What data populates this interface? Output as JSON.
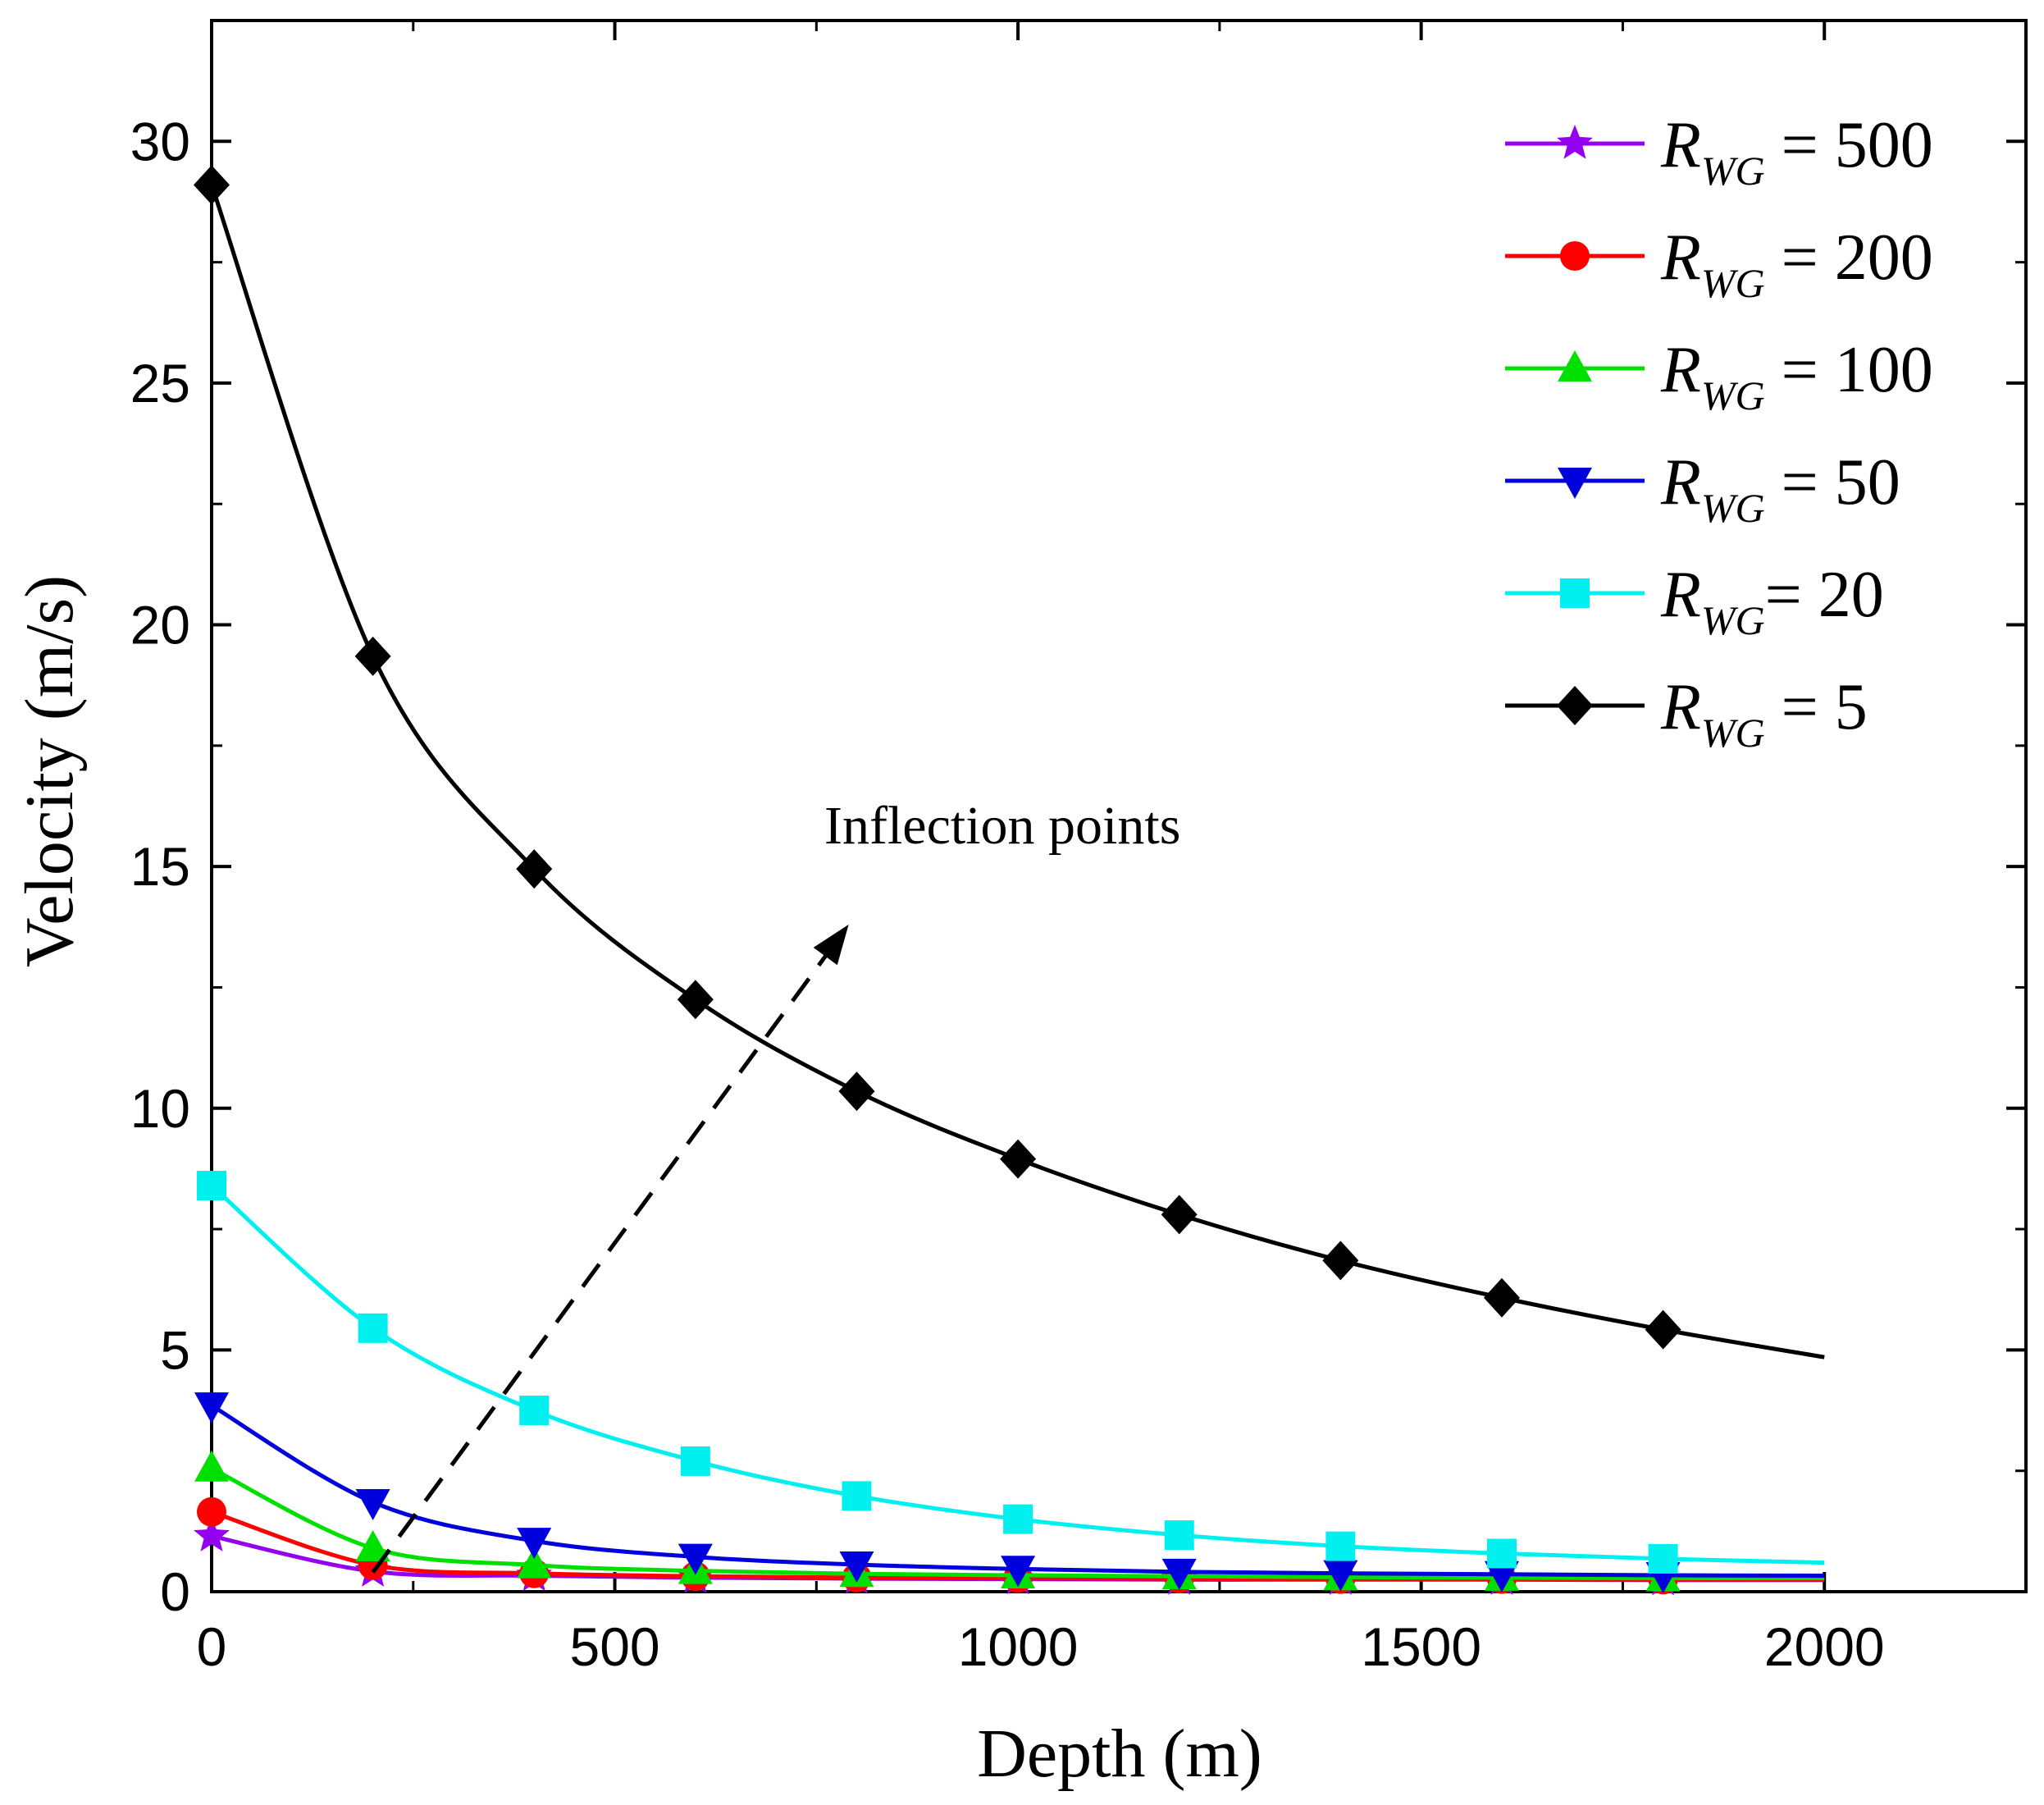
{
  "chart_data": {
    "type": "line",
    "xlabel": "Depth (m)",
    "ylabel": "Velocity (m/s)",
    "xlim": [
      0,
      2250
    ],
    "ylim": [
      0,
      32.5
    ],
    "xticks": [
      0,
      500,
      1000,
      1500,
      2000
    ],
    "yticks": [
      0,
      5,
      10,
      15,
      20,
      25,
      30
    ],
    "legend_position": "top-right",
    "annotation": "Inflection points",
    "arrow": {
      "from": [
        200,
        0.4
      ],
      "to": [
        790,
        13.8
      ]
    },
    "x": [
      0,
      200,
      400,
      600,
      800,
      1000,
      1200,
      1400,
      1600,
      1800,
      2000
    ],
    "series": [
      {
        "name": "R_WG = 500",
        "legend_var": "R",
        "legend_sub": "WG",
        "legend_rest": " = 500",
        "color": "#9400f0",
        "marker": "star",
        "values": [
          1.15,
          0.42,
          0.33,
          0.29,
          0.27,
          0.26,
          0.25,
          0.25,
          0.25,
          0.24,
          0.24
        ]
      },
      {
        "name": "R_WG = 200",
        "legend_var": "R",
        "legend_sub": "WG",
        "legend_rest": " = 200",
        "color": "#ff0000",
        "marker": "circle",
        "values": [
          1.65,
          0.55,
          0.38,
          0.32,
          0.29,
          0.28,
          0.27,
          0.26,
          0.26,
          0.25,
          0.25
        ]
      },
      {
        "name": "R_WG = 100",
        "legend_var": "R",
        "legend_sub": "WG",
        "legend_rest": " = 100",
        "color": "#00e000",
        "marker": "triangle-up",
        "values": [
          2.55,
          0.9,
          0.55,
          0.43,
          0.37,
          0.34,
          0.32,
          0.3,
          0.29,
          0.28,
          0.28
        ]
      },
      {
        "name": "R_WG = 50",
        "legend_var": "R",
        "legend_sub": "WG",
        "legend_rest": " = 50",
        "color": "#0000dd",
        "marker": "triangle-down",
        "values": [
          3.85,
          1.85,
          1.05,
          0.72,
          0.56,
          0.47,
          0.41,
          0.38,
          0.36,
          0.34,
          0.33
        ]
      },
      {
        "name": "R_WG= 20",
        "legend_var": "R",
        "legend_sub": "WG",
        "legend_rest": "=  20",
        "color": "#00f0f0",
        "marker": "square",
        "values": [
          8.4,
          5.45,
          3.75,
          2.7,
          1.98,
          1.5,
          1.17,
          0.94,
          0.79,
          0.68,
          0.6
        ]
      },
      {
        "name": "R_WG = 5",
        "legend_var": "R",
        "legend_sub": "WG",
        "legend_rest": " = 5",
        "color": "#000000",
        "marker": "diamond",
        "values": [
          29.1,
          19.35,
          14.95,
          12.25,
          10.35,
          8.95,
          7.8,
          6.85,
          6.08,
          5.42,
          4.85
        ]
      }
    ]
  }
}
